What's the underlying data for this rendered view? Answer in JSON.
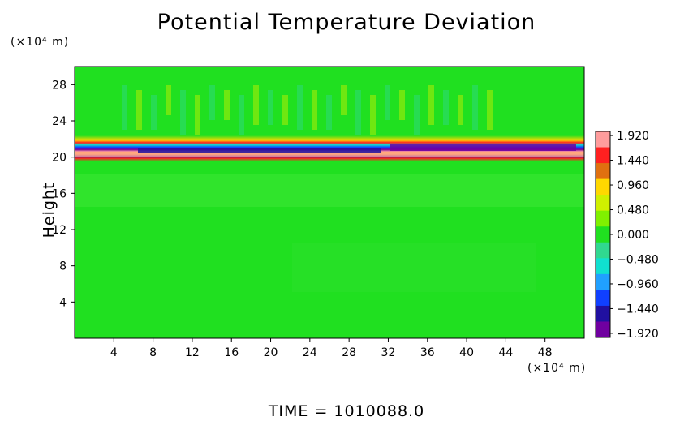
{
  "chart_data": {
    "type": "heatmap",
    "title": "Potential Temperature Deviation",
    "ylabel": "Height",
    "xlabel": "",
    "x_unit": "(×10⁴ m)",
    "y_unit": "(×10⁴ m)",
    "x_ticks": [
      "4",
      "8",
      "12",
      "16",
      "20",
      "24",
      "28",
      "32",
      "36",
      "40",
      "44",
      "48"
    ],
    "x_tick_values": [
      4,
      8,
      12,
      16,
      20,
      24,
      28,
      32,
      36,
      40,
      44,
      48
    ],
    "xlim": [
      0,
      52
    ],
    "y_ticks": [
      "4",
      "8",
      "12",
      "16",
      "20",
      "24",
      "28"
    ],
    "y_tick_values": [
      4,
      8,
      12,
      16,
      20,
      24,
      28
    ],
    "ylim": [
      0,
      30
    ],
    "colorbar": {
      "labels": [
        "1.920",
        "1.440",
        "0.960",
        "0.480",
        "0.000",
        "−0.480",
        "−0.960",
        "−1.440",
        "−1.920"
      ],
      "values": [
        1.92,
        1.44,
        0.96,
        0.48,
        0.0,
        -0.48,
        -0.96,
        -1.44,
        -1.92
      ],
      "range": [
        -2.0,
        2.0
      ],
      "colors_top_to_bottom": [
        "#ff9c9c",
        "#ff2020",
        "#e07010",
        "#ffd800",
        "#d0f000",
        "#80f000",
        "#20e020",
        "#30d890",
        "#10e0d0",
        "#20a0ff",
        "#1040ff",
        "#2010a0",
        "#7000a0"
      ]
    },
    "features": [
      {
        "band": "strong oscillating layer",
        "height_range": [
          19.5,
          22.5
        ],
        "min_value": -1.92,
        "max_value": 1.92
      },
      {
        "band": "wave region above layer",
        "height_range": [
          22.5,
          27
        ],
        "amplitude": 0.6
      },
      {
        "band": "lower domain",
        "height_range": [
          0,
          19.5
        ],
        "approx_value": 0.0
      }
    ],
    "footer": "TIME = 1010088.0"
  }
}
